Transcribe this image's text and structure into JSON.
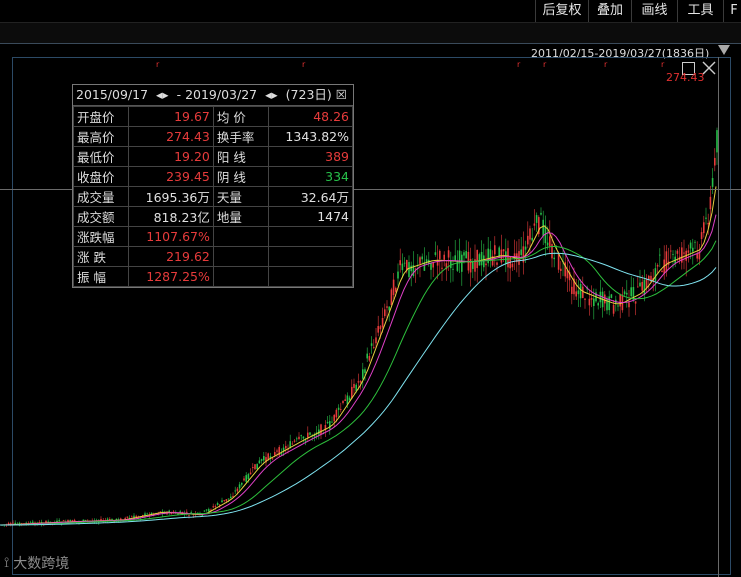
{
  "toolbar": {
    "items": [
      "后复权",
      "叠加",
      "画线",
      "工具",
      "F"
    ]
  },
  "range": {
    "text": "2011/02/15-2019/03/27(1836日)"
  },
  "chart": {
    "max_marker": "274.43"
  },
  "info": {
    "date_from": "2015/09/17",
    "date_to": "2019/03/27",
    "days": "(723日)",
    "rows": [
      {
        "l1": "开盘价",
        "v1": "19.67",
        "c1": "red",
        "l2": "均  价",
        "v2": "48.26",
        "c2": "red"
      },
      {
        "l1": "最高价",
        "v1": "274.43",
        "c1": "red",
        "l2": "换手率",
        "v2": "1343.82%",
        "c2": "wht"
      },
      {
        "l1": "最低价",
        "v1": "19.20",
        "c1": "red",
        "l2": "阳  线",
        "v2": "389",
        "c2": "red"
      },
      {
        "l1": "收盘价",
        "v1": "239.45",
        "c1": "red",
        "l2": "阴  线",
        "v2": "334",
        "c2": "grn"
      },
      {
        "l1": "成交量",
        "v1": "1695.36万",
        "c1": "wht",
        "l2": "天量",
        "v2": "32.64万",
        "c2": "wht"
      },
      {
        "l1": "成交额",
        "v1": "818.23亿",
        "c1": "wht",
        "l2": "地量",
        "v2": "1474",
        "c2": "wht"
      },
      {
        "l1": "涨跌幅",
        "v1": "1107.67%",
        "c1": "red",
        "l2": "",
        "v2": "",
        "c2": "wht"
      },
      {
        "l1": "涨  跌",
        "v1": "219.62",
        "c1": "red",
        "l2": "",
        "v2": "",
        "c2": "wht"
      },
      {
        "l1": "振  幅",
        "v1": "1287.25%",
        "c1": "red",
        "l2": "",
        "v2": "",
        "c2": "wht"
      }
    ]
  },
  "watermark": {
    "text": "大数跨境"
  },
  "colors": {
    "up": "#e63b3b",
    "down": "#27c04a",
    "ma_cyan": "#7fe3f0",
    "ma_green": "#2dbf3c",
    "ma_pink": "#e040c8",
    "ma_yellow": "#e8d040"
  }
}
